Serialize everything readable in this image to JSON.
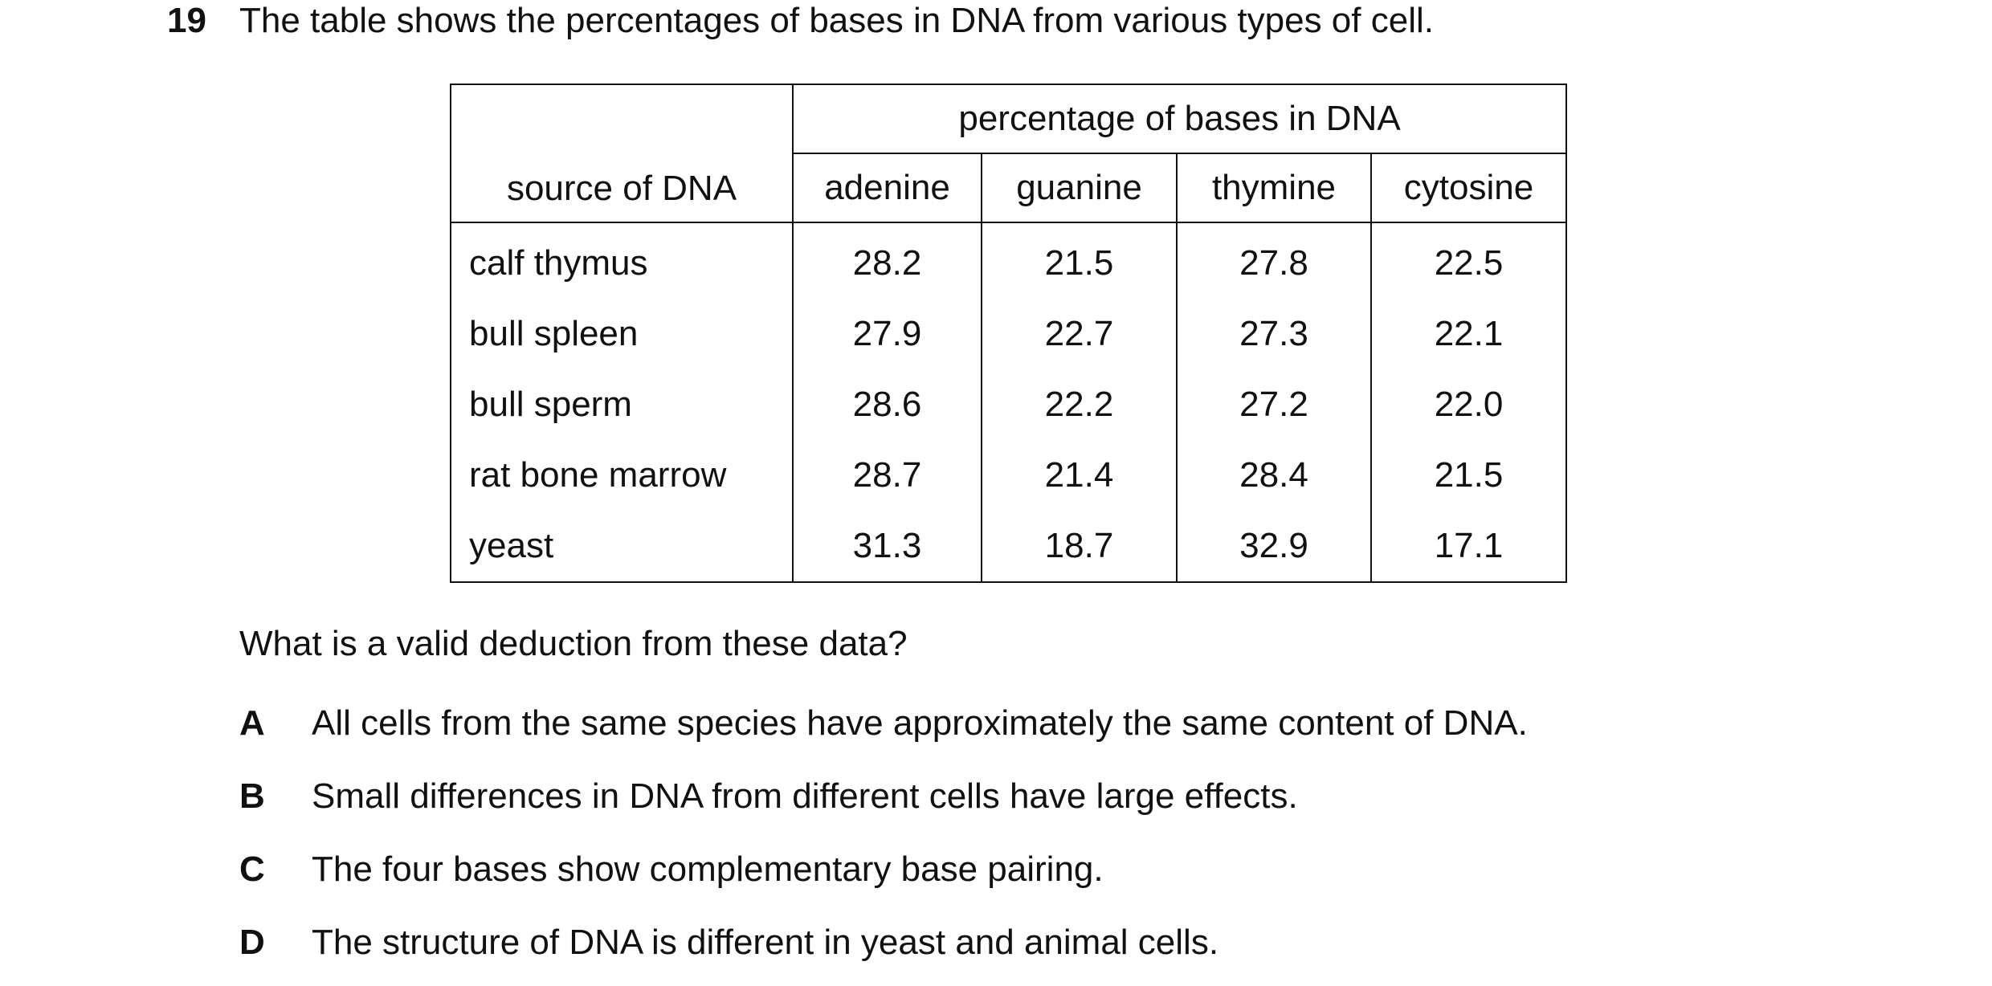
{
  "question": {
    "number": "19",
    "stem": "The table shows the percentages of bases in DNA from various types of cell."
  },
  "table": {
    "group_header": "percentage of bases in DNA",
    "source_header": "source of DNA",
    "columns": [
      "adenine",
      "guanine",
      "thymine",
      "cytosine"
    ],
    "rows": [
      {
        "source": "calf thymus",
        "values": [
          "28.2",
          "21.5",
          "27.8",
          "22.5"
        ]
      },
      {
        "source": "bull spleen",
        "values": [
          "27.9",
          "22.7",
          "27.3",
          "22.1"
        ]
      },
      {
        "source": "bull sperm",
        "values": [
          "28.6",
          "22.2",
          "27.2",
          "22.0"
        ]
      },
      {
        "source": "rat bone marrow",
        "values": [
          "28.7",
          "21.4",
          "28.4",
          "21.5"
        ]
      },
      {
        "source": "yeast",
        "values": [
          "31.3",
          "18.7",
          "32.9",
          "17.1"
        ]
      }
    ]
  },
  "prompt": "What is a valid deduction from these data?",
  "options": [
    {
      "letter": "A",
      "text": "All cells from the same species have approximately the same content of DNA."
    },
    {
      "letter": "B",
      "text": "Small differences in DNA from different cells have large effects."
    },
    {
      "letter": "C",
      "text": "The four bases show complementary base pairing."
    },
    {
      "letter": "D",
      "text": "The structure of DNA is different in yeast and animal cells."
    }
  ]
}
